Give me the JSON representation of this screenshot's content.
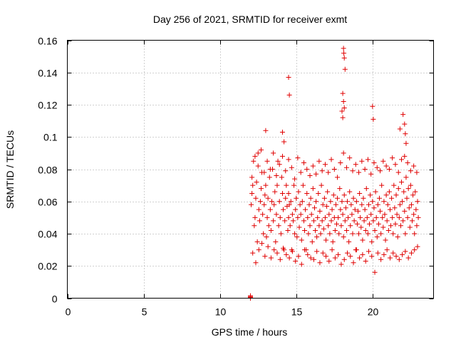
{
  "chart_data": {
    "type": "scatter",
    "title": "Day 256 of 2021, SRMTID for receiver exmt",
    "xlabel": "GPS time / hours",
    "ylabel": "SRMTID / TECUs",
    "xlim": [
      0,
      24
    ],
    "ylim": [
      0,
      0.16
    ],
    "x_ticks": [
      0,
      5,
      10,
      15,
      20
    ],
    "x_tick_labels": [
      "0",
      "5",
      "10",
      "15",
      "20"
    ],
    "y_ticks": [
      0,
      0.02,
      0.04,
      0.06,
      0.08,
      0.1,
      0.12,
      0.14,
      0.16
    ],
    "y_tick_labels": [
      "0",
      "0.02",
      "0.04",
      "0.06",
      "0.08",
      "0.1",
      "0.12",
      "0.14",
      "0.16"
    ],
    "grid": true,
    "marker": "+",
    "color": "#e00000",
    "series": [
      {
        "name": "SRMTID",
        "x": [
          12.0,
          12.0,
          12.0,
          12.0,
          12.05,
          12.1,
          12.15,
          12.2,
          12.25,
          12.3,
          12.35,
          12.4,
          12.45,
          12.5,
          12.55,
          12.6,
          12.65,
          12.7,
          12.75,
          12.8,
          12.85,
          12.9,
          12.95,
          13.0,
          13.05,
          13.1,
          13.15,
          13.2,
          13.25,
          13.3,
          13.35,
          13.4,
          13.45,
          13.5,
          13.55,
          13.6,
          13.65,
          13.7,
          13.75,
          13.8,
          13.85,
          13.9,
          13.95,
          14.0,
          14.05,
          14.1,
          14.15,
          14.2,
          14.25,
          14.3,
          14.35,
          14.4,
          14.45,
          14.5,
          14.5,
          14.55,
          14.6,
          14.65,
          14.7,
          14.75,
          14.8,
          14.85,
          14.9,
          14.95,
          15.0,
          15.05,
          15.1,
          15.15,
          15.2,
          15.25,
          15.3,
          15.35,
          15.4,
          15.45,
          15.5,
          15.55,
          15.6,
          15.65,
          15.7,
          15.75,
          15.8,
          15.85,
          15.9,
          15.95,
          16.0,
          16.05,
          16.1,
          16.15,
          16.2,
          16.25,
          16.3,
          16.35,
          16.4,
          16.45,
          16.5,
          16.55,
          16.6,
          16.65,
          16.7,
          16.75,
          16.8,
          16.85,
          16.9,
          16.95,
          17.0,
          17.05,
          17.1,
          17.15,
          17.2,
          17.25,
          17.3,
          17.35,
          17.4,
          17.45,
          17.5,
          17.55,
          17.6,
          17.65,
          17.7,
          17.75,
          17.8,
          17.85,
          17.9,
          17.95,
          18.0,
          18.05,
          18.1,
          18.15,
          18.2,
          18.25,
          18.3,
          18.35,
          18.4,
          18.45,
          18.5,
          18.55,
          18.6,
          18.65,
          18.7,
          18.75,
          18.8,
          18.85,
          18.9,
          18.95,
          19.0,
          19.05,
          19.1,
          19.15,
          19.2,
          19.25,
          19.3,
          19.35,
          19.4,
          19.45,
          19.5,
          19.55,
          19.6,
          19.65,
          19.7,
          19.75,
          19.8,
          19.85,
          19.9,
          19.95,
          20.0,
          20.05,
          20.1,
          20.15,
          20.2,
          20.25,
          20.3,
          20.35,
          20.4,
          20.45,
          20.5,
          20.55,
          20.6,
          20.65,
          20.7,
          20.75,
          20.8,
          20.85,
          20.9,
          20.95,
          21.0,
          21.05,
          21.1,
          21.15,
          21.2,
          21.25,
          21.3,
          21.35,
          21.4,
          21.45,
          21.5,
          21.55,
          21.6,
          21.65,
          21.7,
          21.75,
          21.8,
          21.85,
          21.9,
          21.95,
          22.0,
          22.05,
          22.1,
          22.15,
          22.2,
          22.25,
          22.3,
          22.35,
          22.4,
          22.45,
          22.5,
          22.55,
          22.6,
          22.65,
          22.7,
          22.75,
          22.8,
          22.85,
          22.9,
          22.95,
          23.0,
          12.1,
          12.3,
          12.5,
          12.7,
          12.9,
          13.1,
          13.3,
          13.5,
          13.7,
          13.9,
          14.1,
          14.3,
          14.5,
          14.7,
          14.9,
          15.1,
          15.3,
          15.5,
          15.7,
          15.9,
          16.1,
          16.3,
          16.5,
          16.7,
          16.9,
          17.1,
          17.3,
          17.5,
          17.7,
          17.9,
          18.1,
          18.3,
          18.5,
          18.7,
          18.9,
          19.1,
          19.3,
          19.5,
          19.7,
          19.9,
          20.1,
          20.3,
          20.5,
          20.7,
          20.9,
          21.1,
          21.3,
          21.5,
          21.7,
          21.9,
          22.1,
          22.3,
          22.5,
          22.7,
          22.9,
          12.15,
          12.35,
          12.55,
          12.75,
          12.95,
          13.15,
          13.35,
          13.55,
          13.75,
          13.95,
          14.15,
          14.35,
          14.55,
          14.75,
          14.95,
          15.15,
          15.35,
          15.55,
          15.75,
          15.95,
          16.15,
          16.35,
          16.55,
          16.75,
          16.95,
          17.15,
          17.35,
          17.55,
          17.75,
          17.95,
          18.15,
          18.35,
          18.55,
          18.75,
          18.95,
          19.15,
          19.35,
          19.55,
          19.75,
          19.95,
          20.15,
          20.35,
          20.55,
          20.75,
          20.95,
          21.15,
          21.35,
          21.55,
          21.75,
          21.95,
          22.15,
          22.35,
          22.55,
          22.75,
          22.95,
          14.5,
          14.55,
          18.1,
          18.12,
          18.15,
          18.2,
          18.05,
          18.1,
          18.15,
          20.0,
          20.05,
          22.0,
          22.1,
          22.15,
          14.1,
          14.2,
          18.0,
          18.05,
          13.0,
          22.2,
          21.8
        ],
        "y": [
          0.0,
          0.0005,
          0.001,
          0.0015,
          0.058,
          0.065,
          0.07,
          0.085,
          0.045,
          0.05,
          0.062,
          0.072,
          0.035,
          0.09,
          0.055,
          0.048,
          0.06,
          0.068,
          0.078,
          0.052,
          0.04,
          0.058,
          0.064,
          0.07,
          0.038,
          0.05,
          0.062,
          0.045,
          0.075,
          0.055,
          0.042,
          0.06,
          0.08,
          0.048,
          0.058,
          0.066,
          0.035,
          0.052,
          0.07,
          0.085,
          0.045,
          0.06,
          0.05,
          0.04,
          0.075,
          0.065,
          0.055,
          0.03,
          0.048,
          0.062,
          0.07,
          0.057,
          0.042,
          0.065,
          0.05,
          0.058,
          0.045,
          0.06,
          0.03,
          0.052,
          0.048,
          0.07,
          0.04,
          0.055,
          0.062,
          0.038,
          0.05,
          0.066,
          0.044,
          0.058,
          0.052,
          0.036,
          0.06,
          0.07,
          0.048,
          0.042,
          0.055,
          0.03,
          0.065,
          0.05,
          0.04,
          0.058,
          0.045,
          0.062,
          0.052,
          0.035,
          0.068,
          0.048,
          0.056,
          0.042,
          0.06,
          0.038,
          0.05,
          0.065,
          0.045,
          0.054,
          0.04,
          0.07,
          0.048,
          0.058,
          0.043,
          0.062,
          0.05,
          0.036,
          0.057,
          0.066,
          0.045,
          0.052,
          0.04,
          0.06,
          0.048,
          0.055,
          0.035,
          0.064,
          0.05,
          0.042,
          0.058,
          0.046,
          0.062,
          0.05,
          0.04,
          0.068,
          0.055,
          0.045,
          0.06,
          0.052,
          0.038,
          0.064,
          0.048,
          0.056,
          0.042,
          0.06,
          0.05,
          0.035,
          0.066,
          0.045,
          0.058,
          0.052,
          0.04,
          0.062,
          0.048,
          0.055,
          0.03,
          0.06,
          0.046,
          0.054,
          0.04,
          0.065,
          0.05,
          0.044,
          0.058,
          0.036,
          0.062,
          0.048,
          0.055,
          0.042,
          0.068,
          0.05,
          0.04,
          0.058,
          0.046,
          0.064,
          0.052,
          0.035,
          0.06,
          0.048,
          0.056,
          0.042,
          0.066,
          0.05,
          0.038,
          0.058,
          0.046,
          0.062,
          0.054,
          0.04,
          0.07,
          0.05,
          0.044,
          0.06,
          0.052,
          0.036,
          0.064,
          0.048,
          0.058,
          0.042,
          0.066,
          0.055,
          0.045,
          0.062,
          0.05,
          0.04,
          0.07,
          0.056,
          0.046,
          0.064,
          0.052,
          0.038,
          0.068,
          0.05,
          0.058,
          0.045,
          0.072,
          0.06,
          0.048,
          0.066,
          0.054,
          0.04,
          0.075,
          0.062,
          0.05,
          0.068,
          0.056,
          0.044,
          0.07,
          0.058,
          0.048,
          0.064,
          0.052,
          0.04,
          0.066,
          0.055,
          0.045,
          0.06,
          0.05,
          0.075,
          0.088,
          0.082,
          0.092,
          0.078,
          0.085,
          0.08,
          0.09,
          0.076,
          0.083,
          0.088,
          0.079,
          0.086,
          0.081,
          0.074,
          0.087,
          0.078,
          0.084,
          0.08,
          0.076,
          0.082,
          0.077,
          0.085,
          0.079,
          0.083,
          0.078,
          0.086,
          0.08,
          0.075,
          0.084,
          0.09,
          0.081,
          0.087,
          0.079,
          0.083,
          0.078,
          0.085,
          0.08,
          0.086,
          0.077,
          0.084,
          0.081,
          0.079,
          0.085,
          0.082,
          0.08,
          0.087,
          0.083,
          0.078,
          0.086,
          0.088,
          0.084,
          0.079,
          0.082,
          0.078,
          0.028,
          0.022,
          0.03,
          0.034,
          0.026,
          0.032,
          0.025,
          0.03,
          0.028,
          0.024,
          0.031,
          0.027,
          0.025,
          0.029,
          0.023,
          0.026,
          0.021,
          0.03,
          0.027,
          0.025,
          0.024,
          0.029,
          0.022,
          0.028,
          0.026,
          0.023,
          0.03,
          0.025,
          0.027,
          0.021,
          0.024,
          0.028,
          0.026,
          0.022,
          0.03,
          0.025,
          0.027,
          0.023,
          0.029,
          0.026,
          0.016,
          0.028,
          0.024,
          0.027,
          0.03,
          0.025,
          0.028,
          0.026,
          0.024,
          0.027,
          0.029,
          0.025,
          0.028,
          0.03,
          0.032,
          0.137,
          0.126,
          0.155,
          0.152,
          0.149,
          0.142,
          0.127,
          0.122,
          0.118,
          0.119,
          0.111,
          0.114,
          0.108,
          0.102,
          0.103,
          0.097,
          0.116,
          0.112,
          0.104,
          0.096,
          0.105
        ]
      }
    ]
  }
}
